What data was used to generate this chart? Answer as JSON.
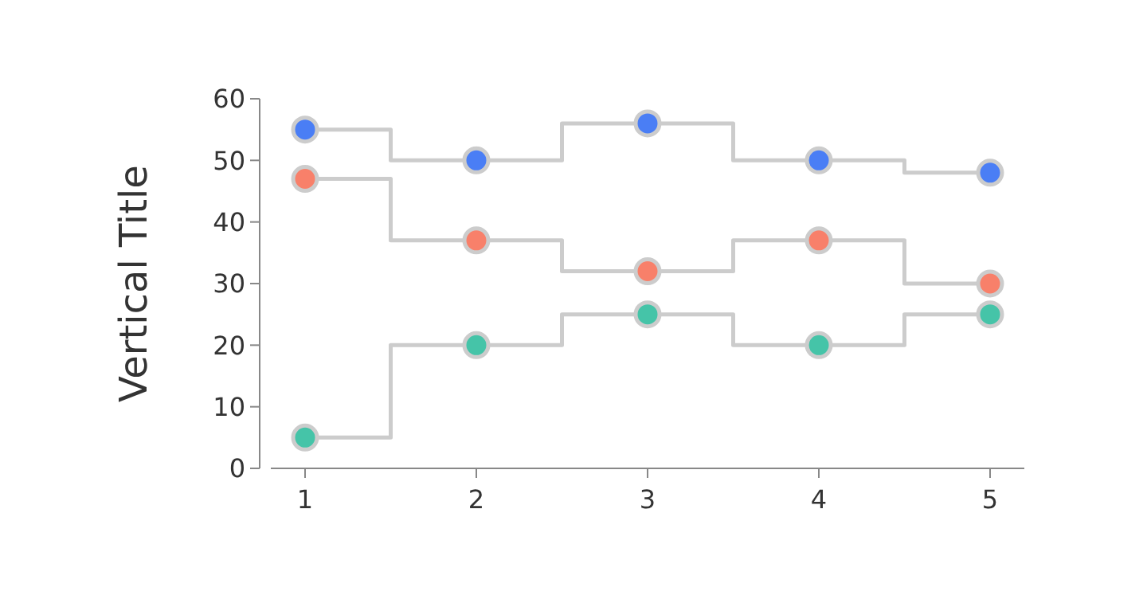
{
  "chart_data": {
    "type": "step",
    "ylabel": "Vertical Title",
    "x": [
      1,
      2,
      3,
      4,
      5
    ],
    "xlim": [
      0.8,
      5.2
    ],
    "xticks": [
      1,
      2,
      3,
      4,
      5
    ],
    "ylim": [
      0,
      60
    ],
    "yticks": [
      0,
      10,
      20,
      30,
      40,
      50,
      60
    ],
    "grid": false,
    "marker": "circle",
    "line_style": "solid",
    "series": [
      {
        "color": "#4a7ef5",
        "values": [
          55,
          50,
          56,
          50,
          48
        ]
      },
      {
        "color": "#f8806a",
        "values": [
          47,
          37,
          32,
          37,
          30
        ]
      },
      {
        "color": "#45c4a8",
        "values": [
          5,
          20,
          25,
          20,
          25
        ]
      }
    ]
  }
}
